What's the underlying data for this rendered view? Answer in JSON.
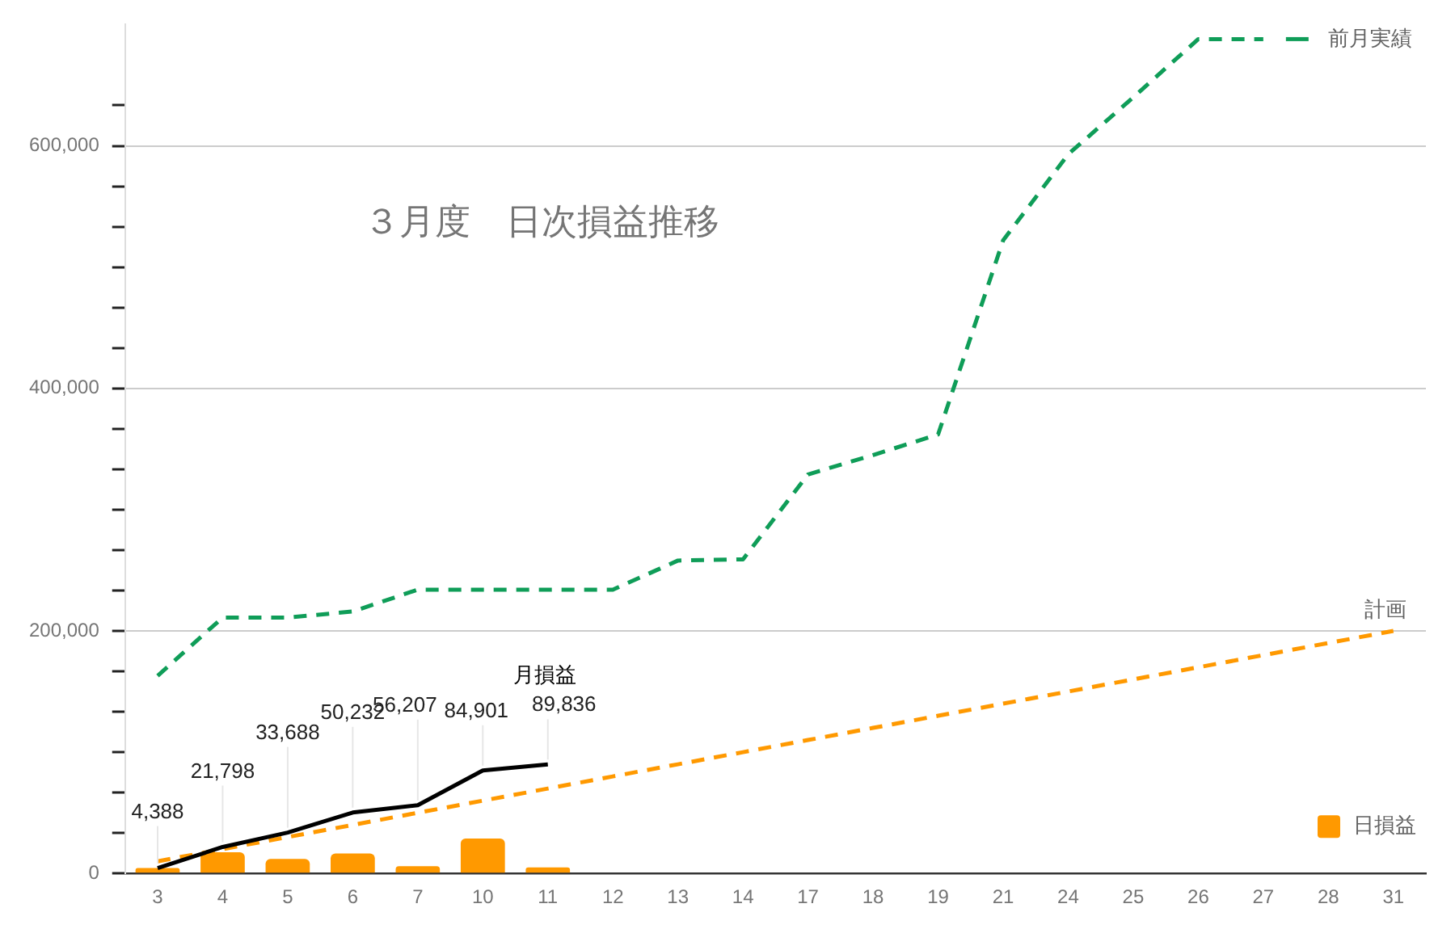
{
  "chart_data": {
    "type": "bar",
    "title": "３月度　日次損益推移",
    "categories": [
      "3",
      "4",
      "5",
      "6",
      "7",
      "10",
      "11",
      "12",
      "13",
      "14",
      "17",
      "18",
      "19",
      "21",
      "24",
      "25",
      "26",
      "27",
      "28",
      "31"
    ],
    "series": [
      {
        "name": "日損益",
        "color": "#ff9900",
        "values": [
          4400,
          17400,
          11900,
          16500,
          6000,
          28700,
          4900,
          null,
          null,
          null,
          null,
          null,
          null,
          null,
          null,
          null,
          null,
          null,
          null,
          null
        ]
      },
      {
        "name": "月損益",
        "type": "line",
        "color": "#000000",
        "line_style": "solid",
        "values": [
          4388,
          21798,
          33688,
          50232,
          56207,
          84901,
          89836,
          null,
          null,
          null,
          null,
          null,
          null,
          null,
          null,
          null,
          null,
          null,
          null,
          null
        ],
        "value_labels": [
          "4,388",
          "21,798",
          "33,688",
          "50,232",
          "56,207",
          "84,901",
          "89,836",
          null,
          null,
          null,
          null,
          null,
          null,
          null,
          null,
          null,
          null,
          null,
          null,
          null
        ]
      },
      {
        "name": "計画",
        "type": "line",
        "color": "#ff9900",
        "line_style": "dashed",
        "values": [
          10000,
          20000,
          30000,
          40000,
          50000,
          60000,
          70000,
          80000,
          90000,
          100000,
          110000,
          120000,
          130000,
          140000,
          150000,
          160000,
          170000,
          180000,
          190000,
          200000
        ]
      },
      {
        "name": "前月実績",
        "type": "line",
        "color": "#0f9d58",
        "line_style": "dashed",
        "values": [
          163000,
          211000,
          211000,
          216000,
          234000,
          234000,
          234000,
          234000,
          258000,
          259000,
          329000,
          345000,
          362000,
          522000,
          593000,
          640000,
          688000,
          688000,
          null,
          null
        ]
      }
    ],
    "ylim": [
      0,
      700000
    ],
    "yticks": [
      0,
      {
        "value": 33333,
        "label": null
      },
      {
        "value": 66667,
        "label": null
      },
      {
        "value": 100000,
        "label": null
      },
      {
        "value": 133333,
        "label": null
      },
      {
        "value": 166667,
        "label": null
      },
      {
        "value": 200000,
        "label": "200,000"
      },
      {
        "value": 233333,
        "label": null
      },
      {
        "value": 266667,
        "label": null
      },
      {
        "value": 300000,
        "label": null
      },
      {
        "value": 333333,
        "label": null
      },
      {
        "value": 366667,
        "label": null
      },
      {
        "value": 400000,
        "label": "400,000"
      },
      {
        "value": 433333,
        "label": null
      },
      {
        "value": 466667,
        "label": null
      },
      {
        "value": 500000,
        "label": null
      },
      {
        "value": 533333,
        "label": null
      },
      {
        "value": 566667,
        "label": null
      },
      {
        "value": 600000,
        "label": "600,000"
      },
      {
        "value": 633333,
        "label": null
      }
    ],
    "grid": "y",
    "legend": "right",
    "marker": "none"
  }
}
